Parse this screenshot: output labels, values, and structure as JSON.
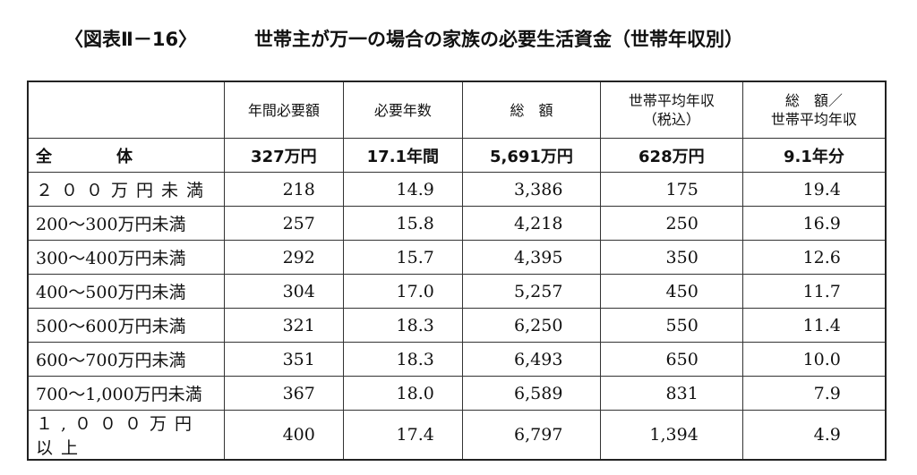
{
  "header": {
    "label": "〈図表Ⅱ－16〉",
    "title": "世帯主が万一の場合の家族の必要生活資金（世帯年収別）"
  },
  "table": {
    "columns": [
      [],
      [
        "年間必要額"
      ],
      [
        "必要年数"
      ],
      [
        "総　額"
      ],
      [
        "世帯平均年収",
        "（税込）"
      ],
      [
        "総　額／",
        "世帯平均年収"
      ]
    ],
    "rows": [
      [
        "全　　　　体",
        "327万円",
        "17.1年間",
        "5,691万円",
        "628万円",
        "9.1年分"
      ],
      [
        "２００万円未満",
        "218",
        "14.9",
        "3,386",
        "175",
        "19.4"
      ],
      [
        "200～300万円未満",
        "257",
        "15.8",
        "4,218",
        "250",
        "16.9"
      ],
      [
        "300～400万円未満",
        "292",
        "15.7",
        "4,395",
        "350",
        "12.6"
      ],
      [
        "400～500万円未満",
        "304",
        "17.0",
        "5,257",
        "450",
        "11.7"
      ],
      [
        "500～600万円未満",
        "321",
        "18.3",
        "6,250",
        "550",
        "11.4"
      ],
      [
        "600～700万円未満",
        "351",
        "18.3",
        "6,493",
        "650",
        "10.0"
      ],
      [
        "700～1,000万円未満",
        "367",
        "18.0",
        "6,589",
        "831",
        "7.9"
      ],
      [
        "１,０００万円以上",
        "400",
        "17.4",
        "6,797",
        "1,394",
        "4.9"
      ]
    ]
  }
}
